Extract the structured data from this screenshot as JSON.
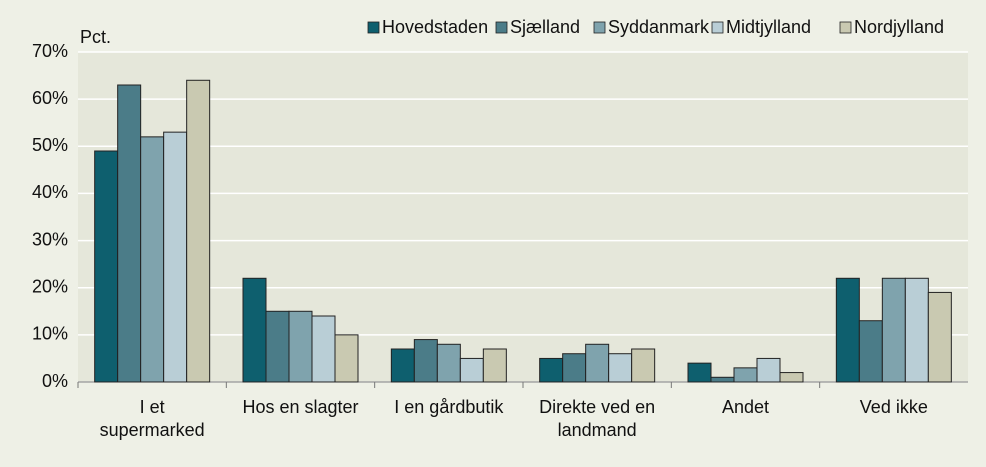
{
  "chart_data": {
    "type": "bar",
    "y_label": "Pct.",
    "categories": [
      "I et supermarked",
      "Hos en slagter",
      "I en gårdbutik",
      "Direkte ved en landmand",
      "Andet",
      "Ved ikke"
    ],
    "series": [
      {
        "name": "Hovedstaden",
        "color": "#0e5f6e",
        "values": [
          49,
          22,
          7,
          5,
          4,
          22
        ]
      },
      {
        "name": "Sjælland",
        "color": "#4b7c88",
        "values": [
          63,
          15,
          9,
          6,
          1,
          13
        ]
      },
      {
        "name": "Syddanmark",
        "color": "#7fa3ad",
        "values": [
          52,
          15,
          8,
          8,
          3,
          22
        ]
      },
      {
        "name": "Midtjylland",
        "color": "#b9ced6",
        "values": [
          53,
          14,
          5,
          6,
          5,
          22
        ]
      },
      {
        "name": "Nordjylland",
        "color": "#c9c9b1",
        "values": [
          64,
          10,
          7,
          7,
          2,
          19
        ]
      }
    ],
    "ylim": [
      0,
      70
    ],
    "yticks": [
      {
        "value": 0,
        "label": "0%"
      },
      {
        "value": 10,
        "label": "10%"
      },
      {
        "value": 20,
        "label": "20%"
      },
      {
        "value": 30,
        "label": "30%"
      },
      {
        "value": 40,
        "label": "40%"
      },
      {
        "value": 50,
        "label": "50%"
      },
      {
        "value": 60,
        "label": "60%"
      },
      {
        "value": 70,
        "label": "70%"
      }
    ],
    "grid": true,
    "legend": "top-right"
  }
}
